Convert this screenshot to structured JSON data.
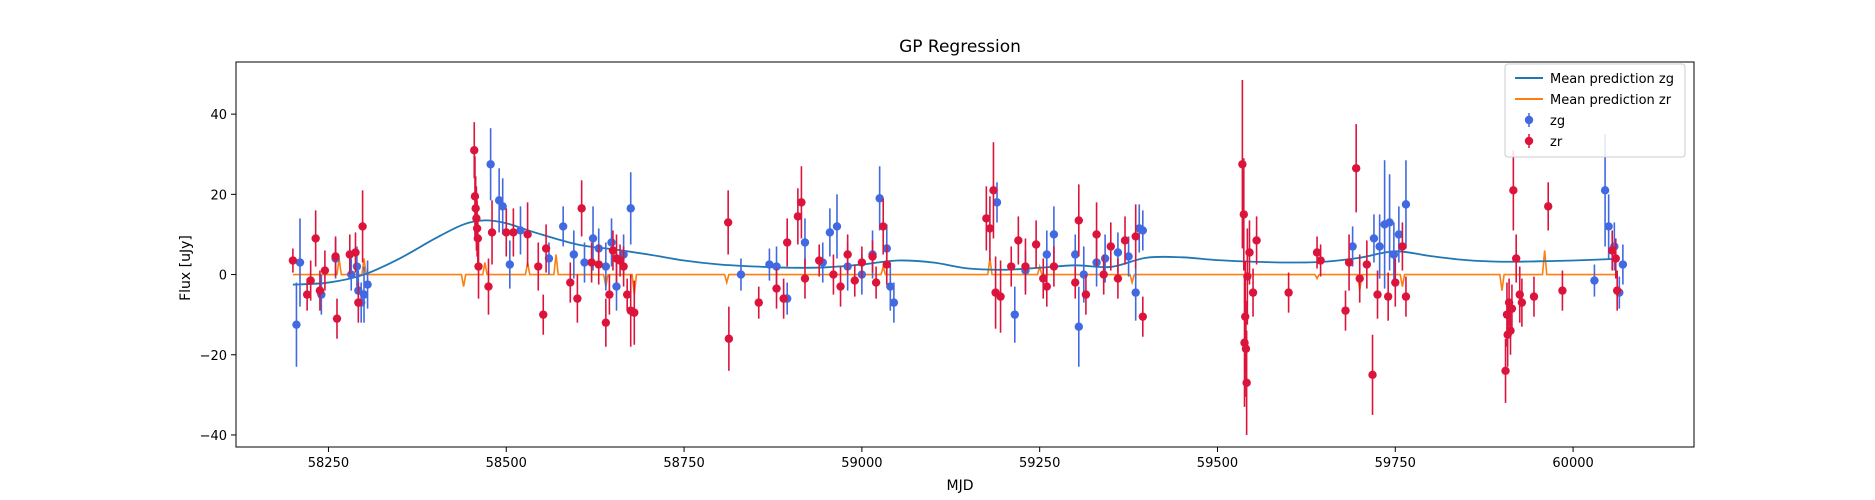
{
  "chart_data": {
    "type": "scatter",
    "title": "GP Regression",
    "xlabel": "MJD",
    "ylabel": "Flux [uJy]",
    "xlim": [
      58120,
      60170
    ],
    "ylim": [
      -43,
      53
    ],
    "xticks": [
      58250,
      58500,
      58750,
      59000,
      59250,
      59500,
      59750,
      60000
    ],
    "yticks": [
      -40,
      -20,
      0,
      20,
      40
    ],
    "grid": false,
    "legend_position": "top-right",
    "legend": {
      "line_zg": "Mean prediction zg",
      "line_zr": "Mean prediction zr",
      "pts_zg": "zg",
      "pts_zr": "zr"
    },
    "colors": {
      "zg_line": "#1f77b4",
      "zr_line": "#ff7f0e",
      "zg_points": "#4169e1",
      "zr_points": "#dc143c"
    },
    "mean_zg": [
      [
        58200,
        -2.5
      ],
      [
        58250,
        -2
      ],
      [
        58300,
        0
      ],
      [
        58350,
        4
      ],
      [
        58400,
        9
      ],
      [
        58440,
        12.5
      ],
      [
        58470,
        13.5
      ],
      [
        58500,
        12.8
      ],
      [
        58540,
        10.5
      ],
      [
        58600,
        7.5
      ],
      [
        58650,
        6.3
      ],
      [
        58700,
        5
      ],
      [
        58750,
        3.5
      ],
      [
        58800,
        2.5
      ],
      [
        58850,
        2
      ],
      [
        58900,
        1.7
      ],
      [
        58950,
        1.8
      ],
      [
        59000,
        2.5
      ],
      [
        59050,
        3.5
      ],
      [
        59100,
        3
      ],
      [
        59150,
        1.5
      ],
      [
        59200,
        1.2
      ],
      [
        59250,
        1.7
      ],
      [
        59300,
        2.3
      ],
      [
        59350,
        1.9
      ],
      [
        59400,
        4.2
      ],
      [
        59450,
        4.3
      ],
      [
        59500,
        3.6
      ],
      [
        59550,
        3.2
      ],
      [
        59600,
        3
      ],
      [
        59650,
        3.2
      ],
      [
        59700,
        4.2
      ],
      [
        59750,
        5.8
      ],
      [
        59800,
        4.6
      ],
      [
        59850,
        3.6
      ],
      [
        59900,
        3.2
      ],
      [
        59950,
        3.3
      ],
      [
        60000,
        3.5
      ],
      [
        60060,
        3.9
      ]
    ],
    "mean_zr_spikes": [
      [
        58265,
        4
      ],
      [
        58300,
        4
      ],
      [
        58440,
        -3
      ],
      [
        58470,
        3
      ],
      [
        58530,
        3
      ],
      [
        58570,
        5
      ],
      [
        58640,
        -3
      ],
      [
        58680,
        -5
      ],
      [
        58810,
        -2
      ],
      [
        59030,
        2
      ],
      [
        59180,
        4
      ],
      [
        59250,
        2
      ],
      [
        59380,
        -2
      ],
      [
        59640,
        -1
      ],
      [
        59700,
        -4
      ],
      [
        59760,
        -3
      ],
      [
        59900,
        -4
      ],
      [
        59960,
        6
      ]
    ],
    "zg_points": [
      [
        58205,
        -12.5,
        10.5
      ],
      [
        58210,
        3,
        11
      ],
      [
        58240,
        -5,
        5
      ],
      [
        58260,
        4,
        5
      ],
      [
        58282,
        0,
        4
      ],
      [
        58290,
        2,
        5
      ],
      [
        58292,
        -4,
        5
      ],
      [
        58296,
        -7,
        5
      ],
      [
        58300,
        -5,
        7
      ],
      [
        58305,
        -2.5,
        6
      ],
      [
        58478,
        27.5,
        9
      ],
      [
        58490,
        18.5,
        8
      ],
      [
        58495,
        17,
        7
      ],
      [
        58505,
        2.5,
        6
      ],
      [
        58520,
        11,
        6
      ],
      [
        58560,
        4,
        4
      ],
      [
        58580,
        12,
        5
      ],
      [
        58595,
        5,
        6
      ],
      [
        58610,
        3,
        5
      ],
      [
        58622,
        9,
        8
      ],
      [
        58630,
        6.5,
        5
      ],
      [
        58640,
        2,
        6
      ],
      [
        58648,
        8,
        6
      ],
      [
        58655,
        -3,
        6
      ],
      [
        58665,
        5,
        5
      ],
      [
        58675,
        16.5,
        9
      ],
      [
        58830,
        0,
        4
      ],
      [
        58870,
        2.5,
        4
      ],
      [
        58880,
        2,
        5
      ],
      [
        58895,
        -6,
        4
      ],
      [
        58920,
        8,
        6
      ],
      [
        58945,
        3,
        5
      ],
      [
        58955,
        10.5,
        6
      ],
      [
        58965,
        12,
        8
      ],
      [
        58980,
        2,
        6
      ],
      [
        59000,
        0,
        5
      ],
      [
        59015,
        5,
        6
      ],
      [
        59025,
        19,
        8
      ],
      [
        59035,
        6.5,
        6
      ],
      [
        59040,
        -3,
        6
      ],
      [
        59045,
        -7,
        5
      ],
      [
        59190,
        18,
        5
      ],
      [
        59215,
        -10,
        7
      ],
      [
        59230,
        1,
        5
      ],
      [
        59260,
        5,
        6
      ],
      [
        59270,
        10,
        7
      ],
      [
        59300,
        5,
        5
      ],
      [
        59305,
        -13,
        10
      ],
      [
        59312,
        0,
        7
      ],
      [
        59330,
        3,
        6
      ],
      [
        59342,
        4,
        6
      ],
      [
        59360,
        5.5,
        5
      ],
      [
        59375,
        4.5,
        5
      ],
      [
        59385,
        -4.5,
        7
      ],
      [
        59390,
        11.5,
        6
      ],
      [
        59395,
        11,
        5
      ],
      [
        59690,
        7,
        5
      ],
      [
        59720,
        9,
        6
      ],
      [
        59728,
        7,
        8
      ],
      [
        59735,
        12.5,
        16
      ],
      [
        59742,
        13,
        12
      ],
      [
        59748,
        5,
        8
      ],
      [
        59755,
        10,
        7
      ],
      [
        59765,
        17.5,
        11
      ],
      [
        60030,
        -1.5,
        4
      ],
      [
        60045,
        21,
        14
      ],
      [
        60050,
        12,
        8
      ],
      [
        60058,
        7,
        6
      ],
      [
        60065,
        -4.5,
        4
      ],
      [
        60070,
        2.5,
        5
      ]
    ],
    "zr_points": [
      [
        58200,
        3.5,
        3
      ],
      [
        58220,
        -5,
        4
      ],
      [
        58225,
        -1.5,
        5
      ],
      [
        58232,
        9,
        7
      ],
      [
        58238,
        -4,
        5
      ],
      [
        58245,
        1,
        5
      ],
      [
        58260,
        4.5,
        5
      ],
      [
        58262,
        -11,
        5
      ],
      [
        58280,
        5,
        5
      ],
      [
        58288,
        5.5,
        5
      ],
      [
        58292,
        -7,
        5
      ],
      [
        58298,
        12,
        9
      ],
      [
        58455,
        31,
        7
      ],
      [
        58456,
        19.5,
        10
      ],
      [
        58457,
        16.5,
        8
      ],
      [
        58458,
        14,
        8
      ],
      [
        58459,
        11.5,
        7
      ],
      [
        58460,
        9,
        6
      ],
      [
        58461,
        2,
        8
      ],
      [
        58475,
        -3,
        7
      ],
      [
        58480,
        10.5,
        8
      ],
      [
        58500,
        10.5,
        6
      ],
      [
        58510,
        10.5,
        6
      ],
      [
        58530,
        10,
        8
      ],
      [
        58545,
        2,
        6
      ],
      [
        58552,
        -10,
        5
      ],
      [
        58556,
        6.5,
        6
      ],
      [
        58590,
        -2,
        5
      ],
      [
        58600,
        -6,
        6
      ],
      [
        58606,
        16.5,
        7
      ],
      [
        58620,
        3,
        5
      ],
      [
        58630,
        2.5,
        5
      ],
      [
        58640,
        -12,
        6
      ],
      [
        58645,
        -5,
        5
      ],
      [
        58650,
        6,
        5
      ],
      [
        58655,
        4,
        6
      ],
      [
        58660,
        3.5,
        4
      ],
      [
        58665,
        2,
        5
      ],
      [
        58670,
        -5,
        4
      ],
      [
        58675,
        -9,
        9
      ],
      [
        58680,
        -9.5,
        8
      ],
      [
        58812,
        13,
        8
      ],
      [
        58813,
        -16,
        8
      ],
      [
        58855,
        -7,
        4
      ],
      [
        58880,
        -3.5,
        5
      ],
      [
        58890,
        -6,
        5
      ],
      [
        58895,
        8,
        6
      ],
      [
        58910,
        14.5,
        7
      ],
      [
        58915,
        18,
        9
      ],
      [
        58920,
        -1,
        5
      ],
      [
        58940,
        3.5,
        4
      ],
      [
        58960,
        0,
        5
      ],
      [
        58970,
        -3,
        5
      ],
      [
        58980,
        5,
        5
      ],
      [
        58990,
        -1.5,
        4
      ],
      [
        59000,
        3,
        4
      ],
      [
        59015,
        4.5,
        4
      ],
      [
        59020,
        -2,
        4
      ],
      [
        59030,
        12,
        7
      ],
      [
        59035,
        2.5,
        5
      ],
      [
        59175,
        14,
        8
      ],
      [
        59180,
        11.5,
        8
      ],
      [
        59185,
        21,
        12
      ],
      [
        59188,
        -4.5,
        9
      ],
      [
        59195,
        -5.5,
        9
      ],
      [
        59210,
        2,
        5
      ],
      [
        59220,
        8.5,
        6
      ],
      [
        59230,
        2,
        7
      ],
      [
        59245,
        7.5,
        6
      ],
      [
        59255,
        -1,
        5
      ],
      [
        59260,
        -3,
        5
      ],
      [
        59270,
        2,
        5
      ],
      [
        59300,
        -2,
        4
      ],
      [
        59305,
        13.5,
        9
      ],
      [
        59315,
        -5,
        5
      ],
      [
        59330,
        10,
        8
      ],
      [
        59340,
        0,
        5
      ],
      [
        59350,
        7,
        6
      ],
      [
        59360,
        -1,
        5
      ],
      [
        59370,
        8.5,
        6
      ],
      [
        59385,
        9.5,
        8
      ],
      [
        59395,
        -10.5,
        5
      ],
      [
        59535,
        27.5,
        21
      ],
      [
        59537,
        15,
        14
      ],
      [
        59538,
        -17,
        16
      ],
      [
        59539,
        -10.5,
        14
      ],
      [
        59540,
        -18.5,
        12
      ],
      [
        59541,
        -27,
        13
      ],
      [
        59542,
        -0.5,
        12
      ],
      [
        59545,
        5.5,
        8
      ],
      [
        59550,
        -4.5,
        6
      ],
      [
        59555,
        8.5,
        6
      ],
      [
        59600,
        -4.5,
        5
      ],
      [
        59640,
        5.5,
        4
      ],
      [
        59645,
        3.5,
        4
      ],
      [
        59680,
        -9,
        5
      ],
      [
        59685,
        3,
        7
      ],
      [
        59695,
        26.5,
        11
      ],
      [
        59700,
        -1,
        6
      ],
      [
        59710,
        2.5,
        6
      ],
      [
        59718,
        -25,
        10
      ],
      [
        59725,
        -5,
        6
      ],
      [
        59740,
        -5.5,
        6
      ],
      [
        59750,
        -2,
        6
      ],
      [
        59760,
        7,
        6
      ],
      [
        59765,
        -5.5,
        5
      ],
      [
        59905,
        -24,
        8
      ],
      [
        59907,
        -10,
        8
      ],
      [
        59908,
        -15,
        8
      ],
      [
        59910,
        -7,
        6
      ],
      [
        59912,
        -14,
        6
      ],
      [
        59914,
        -8.5,
        6
      ],
      [
        59916,
        21,
        10
      ],
      [
        59920,
        4,
        6
      ],
      [
        59925,
        -5,
        7
      ],
      [
        59928,
        -7,
        6
      ],
      [
        59945,
        -5.5,
        5
      ],
      [
        59965,
        17,
        6
      ],
      [
        59985,
        -4,
        5
      ],
      [
        60055,
        6,
        5
      ],
      [
        60060,
        4,
        5
      ],
      [
        60062,
        -4,
        5
      ]
    ]
  }
}
